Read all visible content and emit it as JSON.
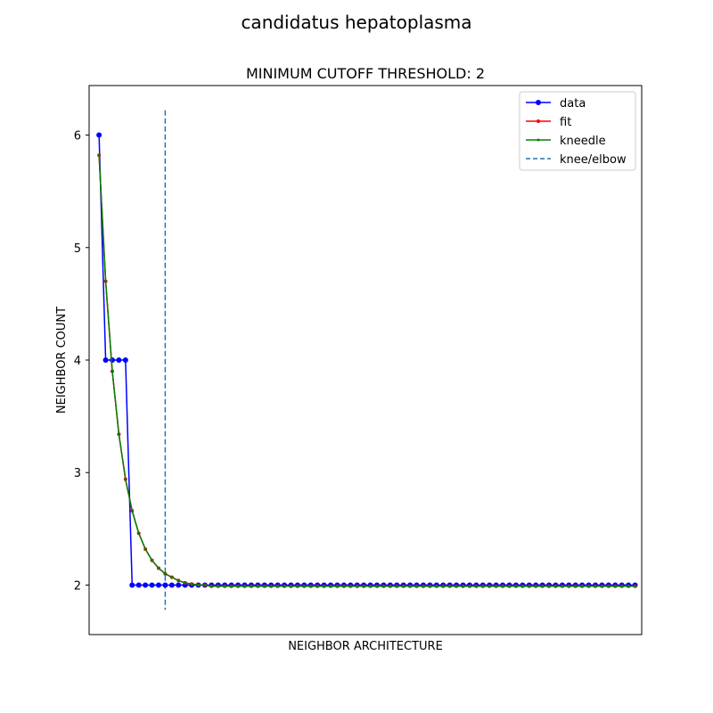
{
  "chart_data": {
    "type": "line",
    "suptitle": "candidatus hepatoplasma",
    "title": "MINIMUM CUTOFF THRESHOLD: 2",
    "xlabel": "NEIGHBOR ARCHITECTURE",
    "ylabel": "NEIGHBOR COUNT",
    "xlim": [
      -1.5,
      82
    ],
    "ylim": [
      1.56,
      6.44
    ],
    "yticks": [
      2,
      3,
      4,
      5,
      6
    ],
    "xticks_shown": false,
    "grid": false,
    "legend_position": "top-right",
    "knee_x": 10,
    "knee_line_range": [
      1.78,
      6.22
    ],
    "series": [
      {
        "name": "data",
        "color": "#0000ff",
        "marker": "circle",
        "values": [
          6,
          4,
          4,
          4,
          4,
          2,
          2,
          2,
          2,
          2,
          2,
          2,
          2,
          2,
          2,
          2,
          2,
          2,
          2,
          2,
          2,
          2,
          2,
          2,
          2,
          2,
          2,
          2,
          2,
          2,
          2,
          2,
          2,
          2,
          2,
          2,
          2,
          2,
          2,
          2,
          2,
          2,
          2,
          2,
          2,
          2,
          2,
          2,
          2,
          2,
          2,
          2,
          2,
          2,
          2,
          2,
          2,
          2,
          2,
          2,
          2,
          2,
          2,
          2,
          2,
          2,
          2,
          2,
          2,
          2,
          2,
          2,
          2,
          2,
          2,
          2,
          2,
          2,
          2,
          2,
          2,
          2
        ]
      },
      {
        "name": "fit",
        "color": "#ff0000",
        "marker": "point",
        "values": [
          5.82,
          4.7,
          3.9,
          3.34,
          2.94,
          2.66,
          2.46,
          2.32,
          2.22,
          2.15,
          2.1,
          2.07,
          2.04,
          2.02,
          2.01,
          2.0,
          2.0,
          1.99,
          1.99,
          1.99,
          1.99,
          1.99,
          1.99,
          1.99,
          1.99,
          1.99,
          1.99,
          1.99,
          1.99,
          1.99,
          1.99,
          1.99,
          1.99,
          1.99,
          1.99,
          1.99,
          1.99,
          1.99,
          1.99,
          1.99,
          1.99,
          1.99,
          1.99,
          1.99,
          1.99,
          1.99,
          1.99,
          1.99,
          1.99,
          1.99,
          1.99,
          1.99,
          1.99,
          1.99,
          1.99,
          1.99,
          1.99,
          1.99,
          1.99,
          1.99,
          1.99,
          1.99,
          1.99,
          1.99,
          1.99,
          1.99,
          1.99,
          1.99,
          1.99,
          1.99,
          1.99,
          1.99,
          1.99,
          1.99,
          1.99,
          1.99,
          1.99,
          1.99,
          1.99,
          1.99,
          1.99,
          1.99
        ]
      },
      {
        "name": "kneedle",
        "color": "#008000",
        "marker": "point",
        "values": [
          5.82,
          4.7,
          3.9,
          3.34,
          2.94,
          2.66,
          2.46,
          2.32,
          2.22,
          2.15,
          2.1,
          2.07,
          2.04,
          2.02,
          2.01,
          2.0,
          2.0,
          1.99,
          1.99,
          1.99,
          1.99,
          1.99,
          1.99,
          1.99,
          1.99,
          1.99,
          1.99,
          1.99,
          1.99,
          1.99,
          1.99,
          1.99,
          1.99,
          1.99,
          1.99,
          1.99,
          1.99,
          1.99,
          1.99,
          1.99,
          1.99,
          1.99,
          1.99,
          1.99,
          1.99,
          1.99,
          1.99,
          1.99,
          1.99,
          1.99,
          1.99,
          1.99,
          1.99,
          1.99,
          1.99,
          1.99,
          1.99,
          1.99,
          1.99,
          1.99,
          1.99,
          1.99,
          1.99,
          1.99,
          1.99,
          1.99,
          1.99,
          1.99,
          1.99,
          1.99,
          1.99,
          1.99,
          1.99,
          1.99,
          1.99,
          1.99,
          1.99,
          1.99,
          1.99,
          1.99,
          1.99,
          1.99
        ]
      }
    ],
    "knee_series": {
      "name": "knee/elbow",
      "color": "#1f77b4",
      "style": "dashed"
    }
  }
}
